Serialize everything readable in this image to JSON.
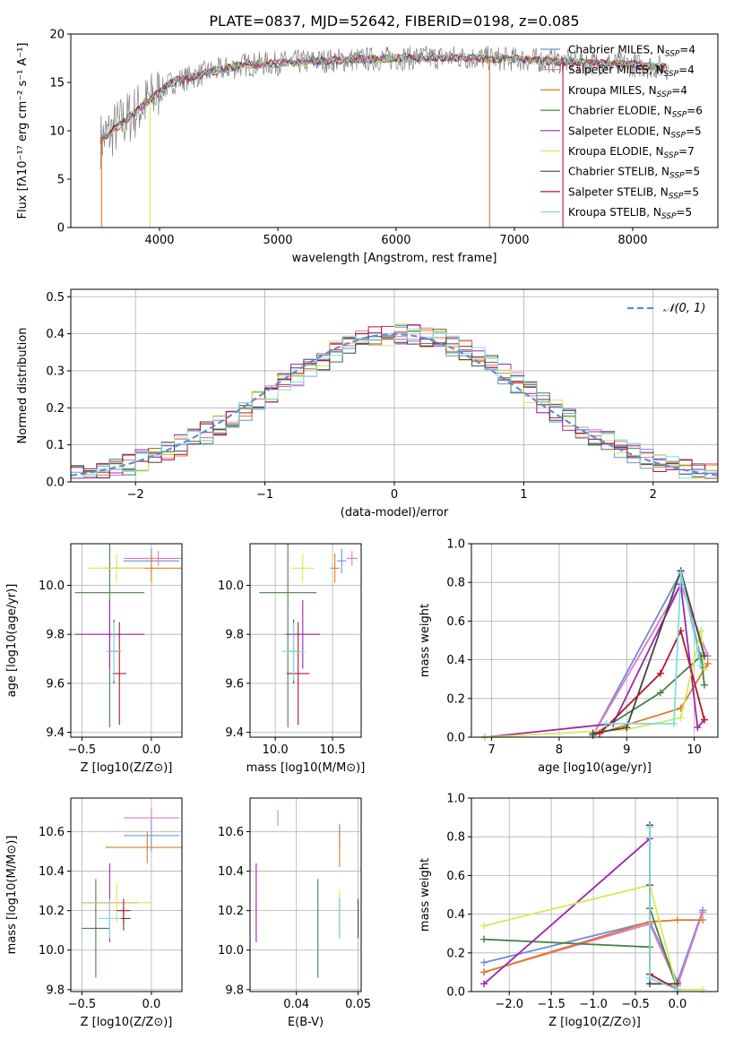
{
  "figure_title": "PLATE=0837, MJD=52642, FIBERID=0198, z=0.085",
  "models": [
    {
      "name": "Chabrier MILES",
      "nssp": "4",
      "color": "#6a8fd4"
    },
    {
      "name": "Salpeter MILES",
      "nssp": "4",
      "color": "#e377c2"
    },
    {
      "name": "Kroupa MILES",
      "nssp": "4",
      "color": "#e07b28"
    },
    {
      "name": "Chabrier ELODIE",
      "nssp": "6",
      "color": "#4a7f4a"
    },
    {
      "name": "Salpeter ELODIE",
      "nssp": "5",
      "color": "#9b27af"
    },
    {
      "name": "Kroupa ELODIE",
      "nssp": "7",
      "color": "#d4ea5a"
    },
    {
      "name": "Chabrier STELIB",
      "nssp": "5",
      "color": "#444444"
    },
    {
      "name": "Salpeter STELIB",
      "nssp": "5",
      "color": "#b2182b"
    },
    {
      "name": "Kroupa STELIB",
      "nssp": "5",
      "color": "#80dde0"
    }
  ],
  "chart_data": [
    {
      "id": "spectrum",
      "type": "line",
      "xlabel": "wavelength [Angstrom, rest frame]",
      "ylabel": "Flux [fλ10⁻¹⁷ erg cm⁻² s⁻¹ A⁻¹]",
      "xlim": [
        3250,
        8720
      ],
      "ylim": [
        0,
        20
      ],
      "xticks": [
        4000,
        5000,
        6000,
        7000,
        8000
      ],
      "yticks": [
        0,
        5,
        10,
        15,
        20
      ],
      "grid": false,
      "legend": "right",
      "approx_continuum": [
        [
          3500,
          9
        ],
        [
          3700,
          11
        ],
        [
          3900,
          13
        ],
        [
          4100,
          15
        ],
        [
          4400,
          16
        ],
        [
          4700,
          16.8
        ],
        [
          5000,
          17
        ],
        [
          5500,
          17.3
        ],
        [
          6000,
          17.5
        ],
        [
          6500,
          17.6
        ],
        [
          7000,
          17.4
        ],
        [
          7500,
          17.1
        ],
        [
          8000,
          16.8
        ],
        [
          8300,
          16.5
        ]
      ],
      "data_spectrum_x": [
        3500,
        8300
      ]
    },
    {
      "id": "residuals",
      "type": "histogram",
      "xlabel": "(data-model)/error",
      "ylabel": "Normed distribution",
      "xlim": [
        -2.5,
        2.5
      ],
      "ylim": [
        0,
        0.52
      ],
      "xticks": [
        -2,
        -1,
        0,
        1,
        2
      ],
      "yticks": [
        0.0,
        0.1,
        0.2,
        0.3,
        0.4,
        0.5
      ],
      "grid": true,
      "legend": "top-right",
      "reference_curve": "N(0,1)"
    },
    {
      "id": "age_vs_Z",
      "type": "scatter",
      "xlabel": "Z [log10(Z/Z⊙)]",
      "ylabel": "age [log10(age/yr)]",
      "xlim": [
        -0.58,
        0.22
      ],
      "ylim": [
        9.38,
        10.17
      ],
      "xticks": [
        -0.5,
        0.0
      ],
      "yticks": [
        9.4,
        9.6,
        9.8,
        10.0
      ],
      "grid": true,
      "points": [
        {
          "model": 0,
          "x": 0.0,
          "y": 10.1,
          "xerr": 0.2,
          "yerr": 0.05
        },
        {
          "model": 1,
          "x": 0.05,
          "y": 10.11,
          "xerr": 0.25,
          "yerr": 0.03
        },
        {
          "model": 2,
          "x": 0.0,
          "y": 10.07,
          "xerr": 0.35,
          "yerr": 0.06
        },
        {
          "model": 3,
          "x": -0.3,
          "y": 9.97,
          "xerr": 0.25,
          "yerr": 0.55
        },
        {
          "model": 4,
          "x": -0.3,
          "y": 9.8,
          "xerr": 0.25,
          "yerr": 0.14
        },
        {
          "model": 5,
          "x": -0.25,
          "y": 10.07,
          "xerr": 0.2,
          "yerr": 0.06
        },
        {
          "model": 6,
          "x": -0.27,
          "y": 9.73,
          "xerr": 0.05,
          "yerr": 0.13
        },
        {
          "model": 7,
          "x": -0.23,
          "y": 9.64,
          "xerr": 0.05,
          "yerr": 0.21
        },
        {
          "model": 8,
          "x": -0.27,
          "y": 9.73,
          "xerr": 0.05,
          "yerr": 0.12
        }
      ]
    },
    {
      "id": "age_vs_mass",
      "type": "scatter",
      "xlabel": "mass [log10(M/M⊙)]",
      "ylabel": "",
      "xlim": [
        9.78,
        10.75
      ],
      "ylim": [
        9.38,
        10.17
      ],
      "xticks": [
        10.0,
        10.5
      ],
      "yticks": [
        9.4,
        9.6,
        9.8,
        10.0
      ],
      "grid": true,
      "points": [
        {
          "model": 0,
          "x": 10.58,
          "y": 10.1,
          "xerr": 0.04,
          "yerr": 0.05
        },
        {
          "model": 1,
          "x": 10.67,
          "y": 10.11,
          "xerr": 0.05,
          "yerr": 0.03
        },
        {
          "model": 2,
          "x": 10.52,
          "y": 10.07,
          "xerr": 0.04,
          "yerr": 0.06
        },
        {
          "model": 3,
          "x": 10.11,
          "y": 9.97,
          "xerr": 0.25,
          "yerr": 0.55
        },
        {
          "model": 4,
          "x": 10.24,
          "y": 9.8,
          "xerr": 0.15,
          "yerr": 0.14
        },
        {
          "model": 5,
          "x": 10.24,
          "y": 10.07,
          "xerr": 0.1,
          "yerr": 0.06
        },
        {
          "model": 6,
          "x": 10.16,
          "y": 9.73,
          "xerr": 0.05,
          "yerr": 0.13
        },
        {
          "model": 7,
          "x": 10.2,
          "y": 9.64,
          "xerr": 0.1,
          "yerr": 0.21
        },
        {
          "model": 8,
          "x": 10.16,
          "y": 9.73,
          "xerr": 0.1,
          "yerr": 0.12
        }
      ]
    },
    {
      "id": "weight_vs_age",
      "type": "line",
      "xlabel": "age  [log10(age/yr)]",
      "ylabel": "mass weight",
      "xlim": [
        6.7,
        10.35
      ],
      "ylim": [
        0,
        1.0
      ],
      "xticks": [
        7,
        8,
        9,
        10
      ],
      "yticks": [
        0.0,
        0.2,
        0.4,
        0.6,
        0.8,
        1.0
      ],
      "grid": true,
      "series": [
        {
          "model": 0,
          "points": [
            [
              8.5,
              0.01
            ],
            [
              9.8,
              0.85
            ],
            [
              10.13,
              0.36
            ]
          ]
        },
        {
          "model": 1,
          "points": [
            [
              8.5,
              0.01
            ],
            [
              9.8,
              0.79
            ],
            [
              10.2,
              0.42
            ]
          ]
        },
        {
          "model": 2,
          "points": [
            [
              8.5,
              0.01
            ],
            [
              9.8,
              0.15
            ],
            [
              10.2,
              0.38
            ]
          ]
        },
        {
          "model": 3,
          "points": [
            [
              8.5,
              0.01
            ],
            [
              9.5,
              0.23
            ],
            [
              10.1,
              0.42
            ],
            [
              10.15,
              0.27
            ]
          ]
        },
        {
          "model": 4,
          "points": [
            [
              6.9,
              0.0
            ],
            [
              8.8,
              0.07
            ],
            [
              9.8,
              0.79
            ],
            [
              10.05,
              0.05
            ],
            [
              10.15,
              0.09
            ]
          ]
        },
        {
          "model": 5,
          "points": [
            [
              6.9,
              0.0
            ],
            [
              9.0,
              0.04
            ],
            [
              9.8,
              0.1
            ],
            [
              10.1,
              0.55
            ],
            [
              10.15,
              0.35
            ]
          ]
        },
        {
          "model": 6,
          "points": [
            [
              8.5,
              0.02
            ],
            [
              9.0,
              0.05
            ],
            [
              9.8,
              0.86
            ],
            [
              10.15,
              0.42
            ]
          ]
        },
        {
          "model": 7,
          "points": [
            [
              8.6,
              0.02
            ],
            [
              9.5,
              0.33
            ],
            [
              9.8,
              0.55
            ],
            [
              10.15,
              0.09
            ]
          ]
        },
        {
          "model": 8,
          "points": [
            [
              8.7,
              0.07
            ],
            [
              9.7,
              0.07
            ],
            [
              9.8,
              0.85
            ],
            [
              10.1,
              0.37
            ]
          ]
        }
      ]
    },
    {
      "id": "mass_vs_Z",
      "type": "scatter",
      "xlabel": "Z [log10(Z/Z⊙)]",
      "ylabel": "mass [log10(M/M⊙)]",
      "xlim": [
        -0.58,
        0.22
      ],
      "ylim": [
        9.79,
        10.77
      ],
      "xticks": [
        -0.5,
        0.0
      ],
      "yticks": [
        9.8,
        10.0,
        10.2,
        10.4,
        10.6
      ],
      "grid": true,
      "points": [
        {
          "model": 0,
          "x": 0.0,
          "y": 10.58,
          "xerr": 0.2,
          "yerr": 0.08
        },
        {
          "model": 1,
          "x": 0.0,
          "y": 10.67,
          "xerr": 0.2,
          "yerr": 0.05
        },
        {
          "model": 2,
          "x": -0.03,
          "y": 10.52,
          "xerr": 0.3,
          "yerr": 0.08
        },
        {
          "model": 3,
          "x": -0.4,
          "y": 10.11,
          "xerr": 0.1,
          "yerr": 0.25
        },
        {
          "model": 4,
          "x": -0.3,
          "y": 10.24,
          "xerr": 0.2,
          "yerr": 0.2
        },
        {
          "model": 5,
          "x": -0.25,
          "y": 10.24,
          "xerr": 0.25,
          "yerr": 0.1
        },
        {
          "model": 6,
          "x": -0.2,
          "y": 10.16,
          "xerr": 0.05,
          "yerr": 0.06
        },
        {
          "model": 7,
          "x": -0.2,
          "y": 10.2,
          "xerr": 0.05,
          "yerr": 0.06
        },
        {
          "model": 8,
          "x": -0.3,
          "y": 10.16,
          "xerr": 0.08,
          "yerr": 0.1
        }
      ]
    },
    {
      "id": "mass_vs_EBV",
      "type": "scatter",
      "xlabel": "E(B-V)",
      "ylabel": "",
      "xlim": [
        0.0325,
        0.0505
      ],
      "ylim": [
        9.79,
        10.77
      ],
      "xticks": [
        0.04,
        0.05
      ],
      "yticks": [
        9.8,
        10.0,
        10.2,
        10.4,
        10.6
      ],
      "grid": true,
      "points": [
        {
          "model": 0,
          "x": 0.047,
          "y": 10.58,
          "xerr": 0,
          "yerr": 0.06
        },
        {
          "model": 1,
          "x": 0.037,
          "y": 10.67,
          "xerr": 0,
          "yerr": 0.04
        },
        {
          "model": 2,
          "x": 0.047,
          "y": 10.52,
          "xerr": 0,
          "yerr": 0.1
        },
        {
          "model": 3,
          "x": 0.0435,
          "y": 10.11,
          "xerr": 0,
          "yerr": 0.25
        },
        {
          "model": 4,
          "x": 0.0335,
          "y": 10.24,
          "xerr": 0,
          "yerr": 0.2
        },
        {
          "model": 5,
          "x": 0.047,
          "y": 10.24,
          "xerr": 0,
          "yerr": 0.06
        },
        {
          "model": 6,
          "x": 0.05,
          "y": 10.16,
          "xerr": 0,
          "yerr": 0.1
        },
        {
          "model": 7,
          "x": 0.047,
          "y": 10.16,
          "xerr": 0,
          "yerr": 0.1
        },
        {
          "model": 8,
          "x": 0.047,
          "y": 10.16,
          "xerr": 0,
          "yerr": 0.1
        }
      ]
    },
    {
      "id": "weight_vs_Z",
      "type": "line",
      "xlabel": "Z [log10(Z/Z⊙)]",
      "ylabel": "mass weight",
      "xlim": [
        -2.45,
        0.48
      ],
      "ylim": [
        0,
        1.0
      ],
      "xticks": [
        -2.0,
        -1.5,
        -1.0,
        -0.5,
        0.0
      ],
      "yticks": [
        0.0,
        0.2,
        0.4,
        0.6,
        0.8,
        1.0
      ],
      "grid": true,
      "series": [
        {
          "model": 0,
          "points": [
            [
              -2.3,
              0.15
            ],
            [
              -0.33,
              0.36
            ],
            [
              0.0,
              0.05
            ],
            [
              0.3,
              0.42
            ]
          ]
        },
        {
          "model": 1,
          "points": [
            [
              -2.3,
              0.1
            ],
            [
              -0.33,
              0.35
            ],
            [
              0.0,
              0.03
            ],
            [
              0.3,
              0.41
            ]
          ]
        },
        {
          "model": 2,
          "points": [
            [
              -2.3,
              0.1
            ],
            [
              -0.33,
              0.36
            ],
            [
              0.0,
              0.37
            ],
            [
              0.3,
              0.37
            ]
          ]
        },
        {
          "model": 3,
          "points": [
            [
              -2.3,
              0.27
            ],
            [
              -0.33,
              0.23
            ],
            [
              -0.33,
              0.43
            ],
            [
              0.0,
              0.01
            ]
          ]
        },
        {
          "model": 4,
          "points": [
            [
              -2.3,
              0.04
            ],
            [
              -0.33,
              0.79
            ],
            [
              -0.33,
              0.09
            ],
            [
              0.0,
              0.01
            ]
          ]
        },
        {
          "model": 5,
          "points": [
            [
              -2.3,
              0.34
            ],
            [
              -0.33,
              0.55
            ],
            [
              0.0,
              0.01
            ],
            [
              0.3,
              0.01
            ]
          ]
        },
        {
          "model": 6,
          "points": [
            [
              -0.33,
              0.86
            ],
            [
              -0.33,
              0.04
            ],
            [
              0.0,
              0.04
            ]
          ]
        },
        {
          "model": 7,
          "points": [
            [
              -0.33,
              0.55
            ],
            [
              -0.33,
              0.09
            ],
            [
              0.0,
              0.01
            ]
          ]
        },
        {
          "model": 8,
          "points": [
            [
              -0.33,
              0.85
            ],
            [
              -0.33,
              0.07
            ],
            [
              0.0,
              0.01
            ]
          ]
        }
      ]
    }
  ],
  "reference_label": "𝒩(0, 1)"
}
